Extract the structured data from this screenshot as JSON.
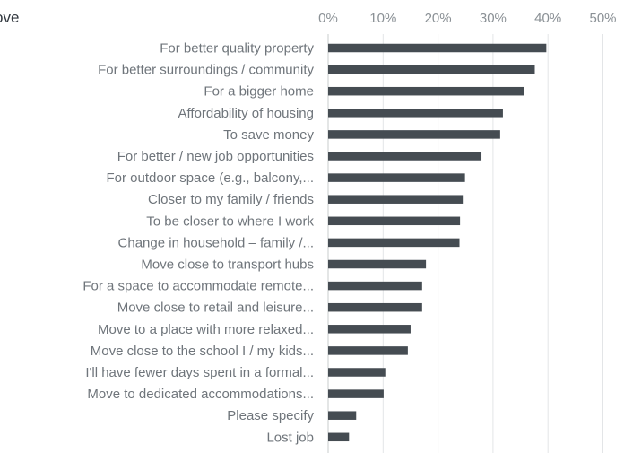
{
  "chart_data": {
    "type": "bar",
    "orientation": "horizontal",
    "title": "ove",
    "xlim": [
      0,
      50
    ],
    "x_ticks": [
      "0%",
      "10%",
      "20%",
      "30%",
      "40%",
      "50%"
    ],
    "grid": true,
    "bar_color": "#454c52",
    "categories": [
      "For better quality property",
      "For better surroundings / community",
      "For a bigger home",
      "Affordability of housing",
      "To save money",
      "For better / new job opportunities",
      "For outdoor space (e.g., balcony,...",
      "Closer to my family / friends",
      "To be closer to where I work",
      "Change in household – family /...",
      "Move close to transport hubs",
      "For a space to accommodate remote...",
      "Move close to retail and leisure...",
      "Move to a place with more relaxed...",
      "Move close to the school I / my kids...",
      "I'll have fewer days spent in a formal...",
      "Move to dedicated accommodations...",
      "Please specify",
      "Lost job"
    ],
    "values": [
      39.7,
      37.6,
      35.7,
      31.8,
      31.3,
      27.9,
      24.9,
      24.5,
      24.0,
      23.9,
      17.8,
      17.1,
      17.1,
      15.0,
      14.5,
      10.4,
      10.1,
      5.1,
      3.8
    ]
  }
}
